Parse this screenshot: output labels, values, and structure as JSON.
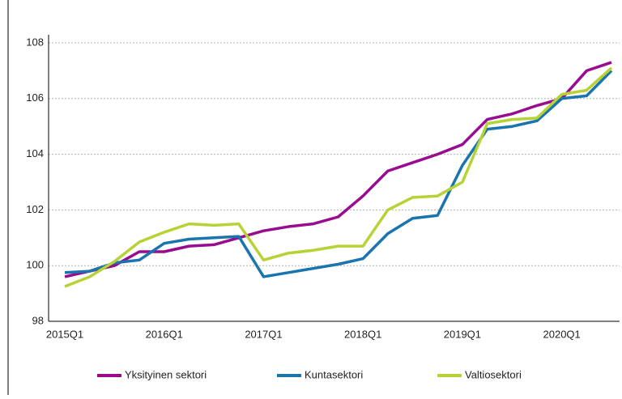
{
  "chart_data": {
    "type": "line",
    "categories": [
      "2015Q1",
      null,
      null,
      null,
      "2016Q1",
      null,
      null,
      null,
      "2017Q1",
      null,
      null,
      null,
      "2018Q1",
      null,
      null,
      null,
      "2019Q1",
      null,
      null,
      null,
      "2020Q1",
      null,
      null
    ],
    "series": [
      {
        "name": "Yksityinen sektori",
        "color": "#990b8f",
        "values": [
          99.6,
          99.8,
          100.0,
          100.5,
          100.5,
          100.7,
          100.75,
          101.0,
          101.25,
          101.4,
          101.5,
          101.75,
          102.5,
          103.4,
          103.7,
          104.0,
          104.35,
          105.25,
          105.45,
          105.75,
          106.0,
          107.0,
          107.3
        ]
      },
      {
        "name": "Kuntasektori",
        "color": "#1a74ae",
        "values": [
          99.75,
          99.8,
          100.1,
          100.2,
          100.8,
          100.95,
          101.0,
          101.05,
          99.6,
          99.75,
          99.9,
          100.05,
          100.25,
          101.15,
          101.7,
          101.8,
          103.6,
          104.9,
          105.0,
          105.2,
          106.0,
          106.1,
          107.0
        ]
      },
      {
        "name": "Valtiosektori",
        "color": "#b5d334",
        "values": [
          99.25,
          99.6,
          100.15,
          100.85,
          101.2,
          101.5,
          101.45,
          101.5,
          100.2,
          100.45,
          100.55,
          100.7,
          100.7,
          102.0,
          102.45,
          102.5,
          103.0,
          105.1,
          105.25,
          105.3,
          106.15,
          106.3,
          107.1
        ]
      }
    ],
    "ylim": [
      98,
      108
    ],
    "yticks": [
      98,
      100,
      102,
      104,
      106,
      108
    ],
    "grid": true,
    "legend": "bottom"
  }
}
